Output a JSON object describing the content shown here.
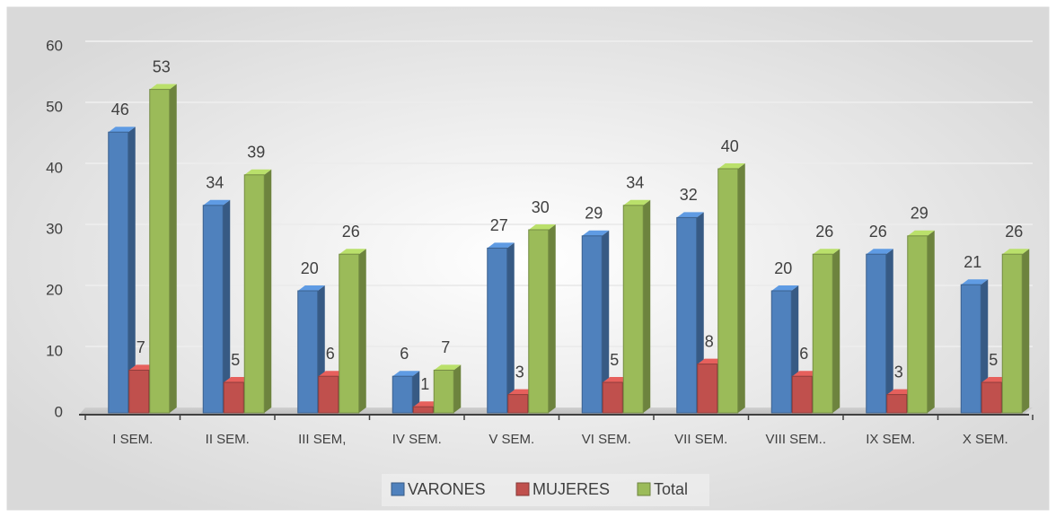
{
  "chart_data": {
    "type": "bar",
    "categories": [
      "I SEM.",
      "II SEM.",
      "III SEM,",
      "IV SEM.",
      "V SEM.",
      "VI SEM.",
      "VII SEM.",
      "VIII SEM..",
      "IX SEM.",
      "X SEM."
    ],
    "series": [
      {
        "name": "VARONES",
        "color": "#4f81bd",
        "values": [
          46,
          34,
          20,
          6,
          27,
          29,
          32,
          20,
          26,
          21
        ]
      },
      {
        "name": "MUJERES",
        "color": "#c0504d",
        "values": [
          7,
          5,
          6,
          1,
          3,
          5,
          8,
          6,
          3,
          5
        ]
      },
      {
        "name": "Total",
        "color": "#9bbb59",
        "values": [
          53,
          39,
          26,
          7,
          30,
          34,
          40,
          26,
          29,
          26
        ]
      }
    ],
    "ylim": [
      0,
      60
    ],
    "yticks": [
      0,
      10,
      20,
      30,
      40,
      50,
      60
    ],
    "grid": true,
    "legend": "bottom"
  }
}
